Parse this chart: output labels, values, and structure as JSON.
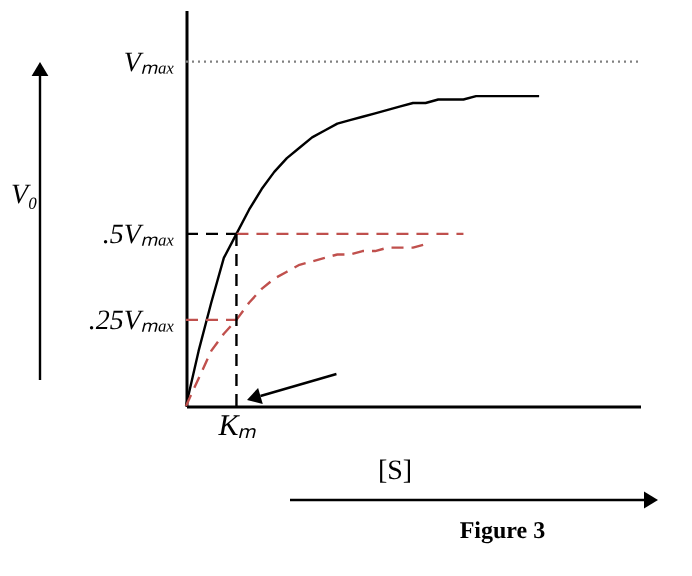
{
  "chart_data": {
    "type": "line",
    "title": "Figure 3",
    "ylabel": "V₀",
    "xlabel": "[S]",
    "ylim": [
      0,
      1.15
    ],
    "categories": [
      null,
      null,
      null,
      null,
      "Kₘ",
      null,
      null,
      null,
      null,
      null,
      null,
      null,
      null,
      null,
      null,
      null,
      null,
      null,
      null,
      null,
      null,
      null,
      null,
      null,
      null,
      null,
      null,
      null,
      null,
      null,
      null,
      null,
      null,
      null,
      null,
      null,
      null
    ],
    "yticks": [
      {
        "value": 1,
        "label": "Vₘₐₓ"
      },
      {
        "value": 0.5,
        "label": ".5Vₘₐₓ"
      },
      {
        "value": 0.25,
        "label": ".25Vₘₐₓ"
      }
    ],
    "marker": "none",
    "series": [
      {
        "color": "#000000",
        "line_style": "solid",
        "values": [
          0,
          0.16,
          0.3,
          0.43,
          0.5,
          0.57,
          0.63,
          0.68,
          0.72,
          0.75,
          0.78,
          0.8,
          0.82,
          0.83,
          0.84,
          0.85,
          0.86,
          0.87,
          0.88,
          0.88,
          0.89,
          0.89,
          0.89,
          0.9,
          0.9,
          0.9,
          0.9,
          0.9,
          0.9,
          null,
          null,
          null,
          null,
          null,
          null,
          null,
          null
        ]
      },
      {
        "color": "#c0504d",
        "line_style": "dashed",
        "values": [
          null,
          null,
          null,
          null,
          0.5,
          0.5,
          0.5,
          0.5,
          0.5,
          0.5,
          0.5,
          0.5,
          0.5,
          0.5,
          0.5,
          0.5,
          0.5,
          0.5,
          0.5,
          0.5,
          0.5,
          0.5,
          0.5,
          null,
          null,
          null,
          null,
          null,
          null,
          null,
          null,
          null,
          null,
          null,
          null,
          null,
          null
        ]
      },
      {
        "color": "#c0504d",
        "line_style": "dashed",
        "values": [
          0,
          0.08,
          0.16,
          0.21,
          0.25,
          0.3,
          0.34,
          0.37,
          0.39,
          0.41,
          0.42,
          0.43,
          0.44,
          0.44,
          0.45,
          0.45,
          0.46,
          0.46,
          0.46,
          0.47,
          null,
          null,
          null,
          null,
          null,
          null,
          null,
          null,
          null,
          null,
          null,
          null,
          null,
          null,
          null,
          null,
          null
        ]
      }
    ],
    "ref_lines": [
      {
        "axis": "y",
        "value": 1,
        "line_style": "dotted",
        "color": "#808080"
      },
      {
        "axis": "y",
        "value": 0.5,
        "line_style": "dashed",
        "color": "#000000"
      },
      {
        "axis": "y",
        "value": 0.25,
        "line_style": "dashed",
        "color": "#c0504d"
      },
      {
        "axis": "x",
        "value": "Kₘ",
        "line_style": "dashed",
        "color": "#000000"
      }
    ]
  }
}
